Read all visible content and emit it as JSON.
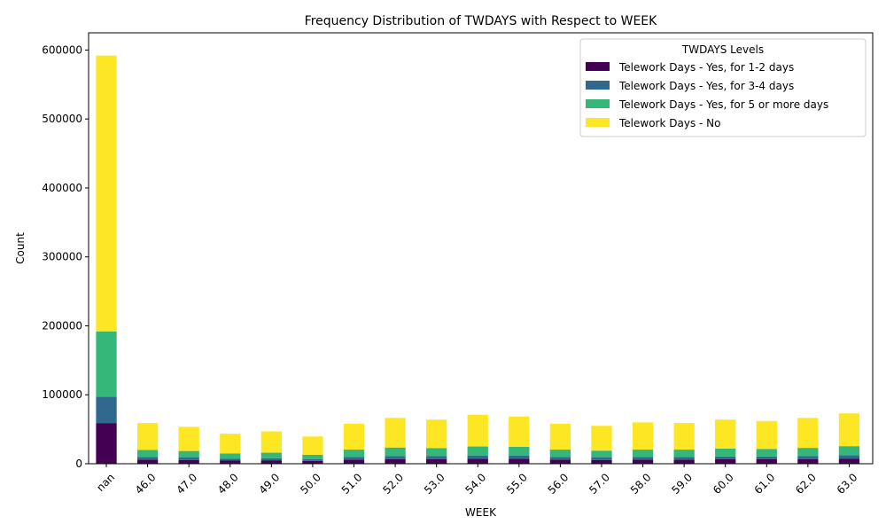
{
  "chart_data": {
    "type": "bar",
    "stacked": true,
    "title": "Frequency Distribution of TWDAYS with Respect to WEEK",
    "xlabel": "WEEK",
    "ylabel": "Count",
    "ylim": [
      0,
      625000
    ],
    "yticks": [
      0,
      100000,
      200000,
      300000,
      400000,
      500000,
      600000
    ],
    "grid": false,
    "legend": {
      "title": "TWDAYS Levels",
      "placement": "top-right"
    },
    "categories": [
      "nan",
      "46.0",
      "47.0",
      "48.0",
      "49.0",
      "50.0",
      "51.0",
      "52.0",
      "53.0",
      "54.0",
      "55.0",
      "56.0",
      "57.0",
      "58.0",
      "59.0",
      "60.0",
      "61.0",
      "62.0",
      "63.0"
    ],
    "series": [
      {
        "name": "Telework Days - Yes, for 1-2 days",
        "color": "#440154",
        "values": [
          59000,
          6000,
          5500,
          4500,
          5000,
          4000,
          6000,
          6500,
          6500,
          7000,
          7000,
          6000,
          5500,
          6000,
          6000,
          6500,
          6500,
          6500,
          7500
        ]
      },
      {
        "name": "Telework Days - Yes, for 3-4 days",
        "color": "#31688e",
        "values": [
          38000,
          4000,
          3500,
          3000,
          3000,
          2500,
          4000,
          4500,
          4500,
          5000,
          5000,
          4000,
          3500,
          4000,
          4000,
          4000,
          4000,
          4500,
          5000
        ]
      },
      {
        "name": "Telework Days - Yes, for 5 or more days",
        "color": "#35b779",
        "values": [
          95000,
          10000,
          9500,
          7500,
          8000,
          6500,
          10500,
          12500,
          11500,
          13000,
          12500,
          10500,
          10000,
          10500,
          10500,
          11500,
          11000,
          12000,
          13000
        ]
      },
      {
        "name": "Telework Days - No",
        "color": "#fde725",
        "values": [
          400000,
          39000,
          35000,
          28500,
          31000,
          26500,
          37500,
          43000,
          41500,
          46000,
          44000,
          37500,
          36000,
          39500,
          38500,
          42000,
          40500,
          43500,
          47500
        ]
      }
    ]
  }
}
